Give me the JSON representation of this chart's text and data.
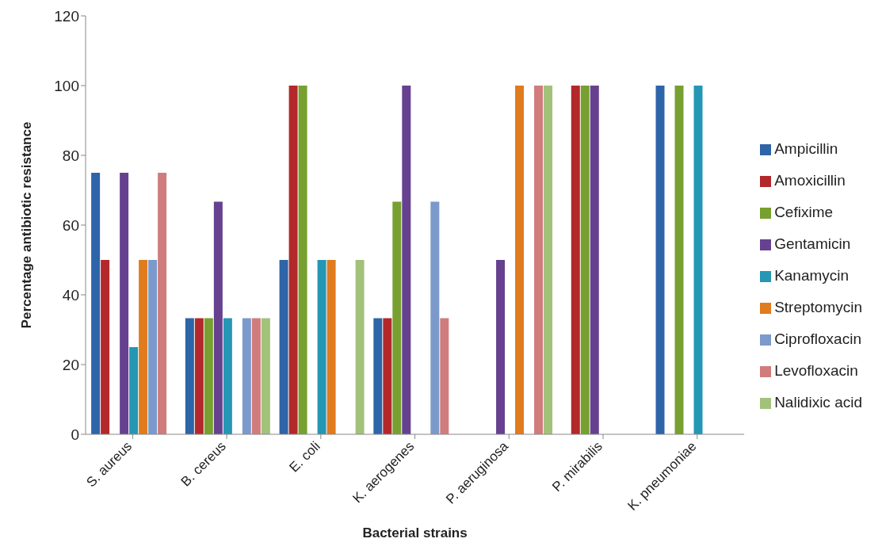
{
  "chart_data": {
    "type": "bar",
    "xlabel": "Bacterial strains",
    "ylabel": "Percentage antibiotic  resistance",
    "categories": [
      "S. aureus",
      "B. cereus",
      "E. coli",
      "K. aerogenes",
      "P. aeruginosa",
      "P. mirabilis",
      "K. pneumoniae"
    ],
    "ylim": [
      0,
      120
    ],
    "yticks": [
      0,
      20,
      40,
      60,
      80,
      100,
      120
    ],
    "grid": false,
    "legend": "right",
    "series": [
      {
        "name": "Ampicillin",
        "color": "#2e64a8",
        "values": [
          75,
          33.3,
          50,
          33.3,
          0,
          0,
          100
        ]
      },
      {
        "name": "Amoxicillin",
        "color": "#b3282a",
        "values": [
          50,
          33.3,
          100,
          33.3,
          0,
          100,
          0
        ]
      },
      {
        "name": "Cefixime",
        "color": "#77a030",
        "values": [
          0,
          33.3,
          100,
          66.7,
          0,
          100,
          100
        ]
      },
      {
        "name": "Gentamicin",
        "color": "#66418f",
        "values": [
          75,
          66.7,
          0,
          100,
          50,
          100,
          0
        ]
      },
      {
        "name": "Kanamycin",
        "color": "#2596b4",
        "values": [
          25,
          33.3,
          50,
          0,
          0,
          0,
          100
        ]
      },
      {
        "name": "Streptomycin",
        "color": "#e07b1e",
        "values": [
          50,
          0,
          50,
          0,
          100,
          0,
          0
        ]
      },
      {
        "name": "Ciprofloxacin",
        "color": "#7b9acb",
        "values": [
          50,
          33.3,
          0,
          66.7,
          0,
          0,
          0
        ]
      },
      {
        "name": "Levofloxacin",
        "color": "#d07c7c",
        "values": [
          75,
          33.3,
          0,
          33.3,
          100,
          0,
          0
        ]
      },
      {
        "name": "Nalidixic acid",
        "color": "#a2c27a",
        "values": [
          0,
          33.3,
          50,
          0,
          100,
          0,
          0
        ]
      }
    ]
  }
}
